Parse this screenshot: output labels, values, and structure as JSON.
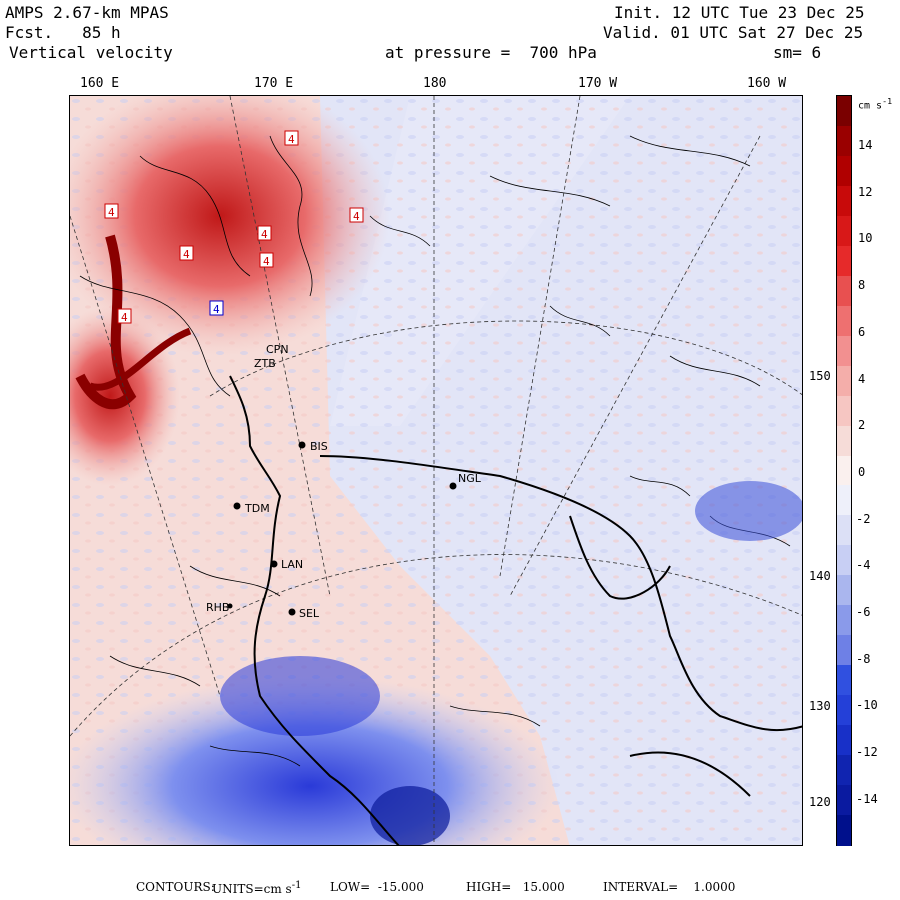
{
  "header": {
    "model": "AMPS 2.67-km MPAS",
    "forecast": "Fcst.   85 h",
    "field": "Vertical velocity",
    "init": "Init. 12 UTC Tue 23 Dec 25",
    "valid": "Valid. 01 UTC Sat 27 Dec 25",
    "pressure": "at pressure =  700 hPa",
    "smoothing": "sm= 6"
  },
  "map": {
    "longitude_labels": [
      "160 E",
      "170 E",
      "180",
      "170 W",
      "160 W"
    ],
    "latitude_labels": [
      "150 W",
      "140 W",
      "130 W",
      "120 W"
    ],
    "stations": [
      {
        "id": "BIS",
        "label": "BIS"
      },
      {
        "id": "NGL",
        "label": "NGL"
      },
      {
        "id": "TDM",
        "label": "TDM"
      },
      {
        "id": "LAN",
        "label": "LAN"
      },
      {
        "id": "SEL",
        "label": "SEL"
      },
      {
        "id": "RHB",
        "label": "RHB"
      },
      {
        "id": "ZTB",
        "label": "ZTB"
      },
      {
        "id": "CPN",
        "label": "CPN"
      }
    ],
    "extrema_markers": [
      "4",
      "4",
      "4",
      "4",
      "4",
      "4",
      "4",
      "4"
    ]
  },
  "colorbar": {
    "units": "cm s",
    "units_exp": "-1",
    "labels": [
      "14",
      "12",
      "10",
      "8",
      "6",
      "4",
      "2",
      "0",
      "-2",
      "-4",
      "-6",
      "-8",
      "-10",
      "-12",
      "-14"
    ],
    "colors": {
      "neg_strong": "#00108c",
      "neg_mid": "#3050e0",
      "neg_weak": "#dce0f6",
      "pos_weak": "#f6dcd8",
      "pos_mid": "#e85050",
      "pos_strong": "#7a0000"
    }
  },
  "footer": {
    "contours": "CONTOURS:",
    "units_label": "UNITS=cm s",
    "units_exp": "-1",
    "low": "LOW=  -15.000",
    "high": "HIGH=   15.000",
    "interval": "INTERVAL=    1.0000"
  }
}
